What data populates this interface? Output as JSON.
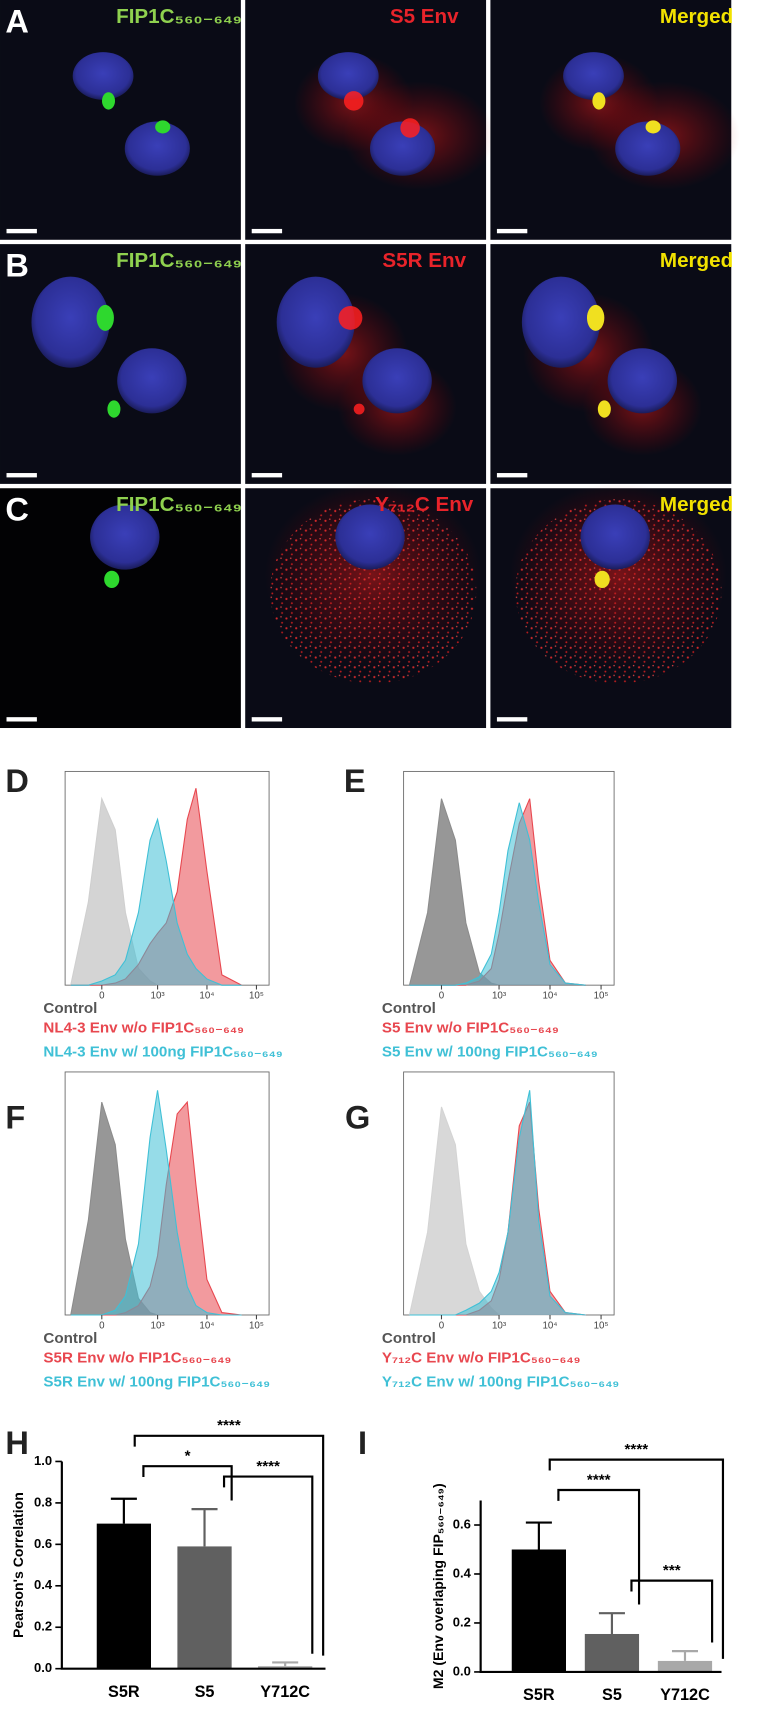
{
  "image_panels": [
    {
      "letter": "A",
      "channels": [
        "FIP1C₅₆₀₋₆₄₉",
        "S5 Env",
        "Merged"
      ]
    },
    {
      "letter": "B",
      "channels": [
        "FIP1C₅₆₀₋₆₄₉",
        "S5R Env",
        "Merged"
      ]
    },
    {
      "letter": "C",
      "channels": [
        "FIP1C₅₆₀₋₆₄₉",
        "Y₇₁₂C Env",
        "Merged"
      ]
    }
  ],
  "chart_data": [
    {
      "type": "density",
      "label": "D",
      "xscale": "asinh",
      "xlim": [
        -400,
        180000
      ],
      "ylim": [
        0,
        100
      ],
      "xticks": [
        {
          "value": 0,
          "label": "0"
        },
        {
          "value": 1000,
          "label": "10³"
        },
        {
          "value": 10000,
          "label": "10⁴"
        },
        {
          "value": 100000,
          "label": "10⁵"
        }
      ],
      "x": [
        -300,
        -100,
        0,
        100,
        200,
        400,
        700,
        1000,
        1500,
        2500,
        4000,
        6000,
        10000,
        20000,
        50000
      ],
      "series": [
        {
          "name": "Control",
          "color": "#cfcfcf",
          "values": [
            0,
            40,
            90,
            75,
            35,
            8,
            2,
            0,
            0,
            0,
            0,
            0,
            0,
            0,
            0
          ]
        },
        {
          "name": "NL4-3 Env w/o FIP1C₅₆₀₋₆₄₉",
          "color": "#e8474f",
          "values": [
            0,
            0,
            0,
            1,
            3,
            10,
            20,
            25,
            30,
            45,
            80,
            95,
            55,
            5,
            0
          ]
        },
        {
          "name": "NL4-3 Env w/ 100ng FIP1C₅₆₀₋₆₄₉",
          "color": "#3fc0d6",
          "values": [
            0,
            0,
            2,
            5,
            12,
            35,
            70,
            80,
            60,
            30,
            15,
            8,
            3,
            0,
            0
          ]
        }
      ]
    },
    {
      "type": "density",
      "label": "E",
      "xscale": "asinh",
      "xlim": [
        -400,
        180000
      ],
      "ylim": [
        0,
        100
      ],
      "xticks": [
        {
          "value": 0,
          "label": "0"
        },
        {
          "value": 1000,
          "label": "10³"
        },
        {
          "value": 10000,
          "label": "10⁴"
        },
        {
          "value": 100000,
          "label": "10⁵"
        }
      ],
      "x": [
        -300,
        -100,
        0,
        100,
        200,
        400,
        700,
        1000,
        1500,
        2500,
        4000,
        6000,
        10000,
        20000,
        50000
      ],
      "series": [
        {
          "name": "Control",
          "color": "#8c8c8c",
          "values": [
            0,
            35,
            90,
            70,
            30,
            6,
            1,
            0,
            0,
            0,
            0,
            0,
            0,
            0,
            0
          ]
        },
        {
          "name": "S5 Env w/o FIP1C₅₆₀₋₆₄₉",
          "color": "#e8474f",
          "values": [
            0,
            0,
            0,
            0,
            0,
            2,
            8,
            25,
            50,
            78,
            90,
            50,
            12,
            1,
            0
          ]
        },
        {
          "name": "S5 Env w/ 100ng FIP1C₅₆₀₋₆₄₉",
          "color": "#3fc0d6",
          "values": [
            0,
            0,
            0,
            0,
            1,
            4,
            15,
            35,
            65,
            88,
            70,
            40,
            10,
            1,
            0
          ]
        }
      ]
    },
    {
      "type": "density",
      "label": "F",
      "xscale": "asinh",
      "xlim": [
        -400,
        180000
      ],
      "ylim": [
        0,
        100
      ],
      "xticks": [
        {
          "value": 0,
          "label": "0"
        },
        {
          "value": 1000,
          "label": "10³"
        },
        {
          "value": 10000,
          "label": "10⁴"
        },
        {
          "value": 100000,
          "label": "10⁵"
        }
      ],
      "x": [
        -300,
        -100,
        0,
        100,
        200,
        400,
        700,
        1000,
        1500,
        2500,
        4000,
        6000,
        10000,
        20000,
        50000
      ],
      "series": [
        {
          "name": "Control",
          "color": "#8c8c8c",
          "values": [
            0,
            40,
            90,
            72,
            32,
            7,
            1,
            0,
            0,
            0,
            0,
            0,
            0,
            0,
            0
          ]
        },
        {
          "name": "S5R Env w/o FIP1C₅₆₀₋₆₄₉",
          "color": "#e8474f",
          "values": [
            0,
            0,
            0,
            0,
            1,
            4,
            12,
            25,
            55,
            85,
            90,
            55,
            15,
            1,
            0
          ]
        },
        {
          "name": "S5R Env w/ 100ng FIP1C₅₆₀₋₆₄₉",
          "color": "#3fc0d6",
          "values": [
            0,
            0,
            0,
            2,
            8,
            30,
            75,
            95,
            70,
            35,
            12,
            4,
            1,
            0,
            0
          ]
        }
      ]
    },
    {
      "type": "density",
      "label": "G",
      "xscale": "asinh",
      "xlim": [
        -400,
        180000
      ],
      "ylim": [
        0,
        100
      ],
      "xticks": [
        {
          "value": 0,
          "label": "0"
        },
        {
          "value": 1000,
          "label": "10³"
        },
        {
          "value": 10000,
          "label": "10⁴"
        },
        {
          "value": 100000,
          "label": "10⁵"
        }
      ],
      "x": [
        -300,
        -100,
        0,
        100,
        200,
        400,
        700,
        1000,
        1500,
        2500,
        4000,
        6000,
        10000,
        20000,
        50000
      ],
      "series": [
        {
          "name": "Control",
          "color": "#d4d4d4",
          "values": [
            0,
            35,
            88,
            72,
            30,
            10,
            3,
            0,
            0,
            0,
            0,
            0,
            0,
            0,
            0
          ]
        },
        {
          "name": "Y₇₁₂C Env w/o FIP1C₅₆₀₋₆₄₉",
          "color": "#e8474f",
          "values": [
            0,
            0,
            0,
            0,
            0,
            2,
            6,
            15,
            35,
            80,
            90,
            45,
            10,
            1,
            0
          ]
        },
        {
          "name": "Y₇₁₂C Env w/ 100ng FIP1C₅₆₀₋₆₄₉",
          "color": "#3fc0d6",
          "values": [
            0,
            0,
            0,
            0,
            2,
            5,
            10,
            18,
            35,
            75,
            95,
            40,
            8,
            1,
            0
          ]
        }
      ]
    },
    {
      "type": "bar",
      "label": "H",
      "ylabel": "Pearson's Correlation",
      "categories": [
        "S5R",
        "S5",
        "Y712C"
      ],
      "values": [
        0.7,
        0.59,
        0.012
      ],
      "errors": [
        0.12,
        0.18,
        0.018
      ],
      "colors": [
        "#000000",
        "#606060",
        "#a8a8a8"
      ],
      "ylim": [
        0,
        1
      ],
      "yticks": [
        {
          "value": 0,
          "label": "0.0"
        },
        0.2,
        0.4,
        0.6,
        0.8,
        {
          "value": 1,
          "label": "1.0"
        }
      ],
      "annotations": [
        {
          "text": "****",
          "from": 0,
          "to": 2
        },
        {
          "text": "*",
          "from": 0,
          "to": 1
        },
        {
          "text": "****",
          "from": 1,
          "to": 2
        }
      ]
    },
    {
      "type": "bar",
      "label": "I",
      "ylabel": "M2 (Env overlaping FIP₅₆₀₋₆₄₉)",
      "categories": [
        "S5R",
        "S5",
        "Y712C"
      ],
      "values": [
        0.5,
        0.155,
        0.045
      ],
      "errors": [
        0.11,
        0.085,
        0.04
      ],
      "colors": [
        "#000000",
        "#606060",
        "#a8a8a8"
      ],
      "ylim": [
        0,
        0.7
      ],
      "yticks": [
        {
          "value": 0,
          "label": "0.0"
        },
        0.2,
        0.4,
        0.6
      ],
      "annotations": [
        {
          "text": "****",
          "from": 0,
          "to": 2
        },
        {
          "text": "****",
          "from": 0,
          "to": 1
        },
        {
          "text": "***",
          "from": 1,
          "to": 2
        }
      ]
    }
  ]
}
